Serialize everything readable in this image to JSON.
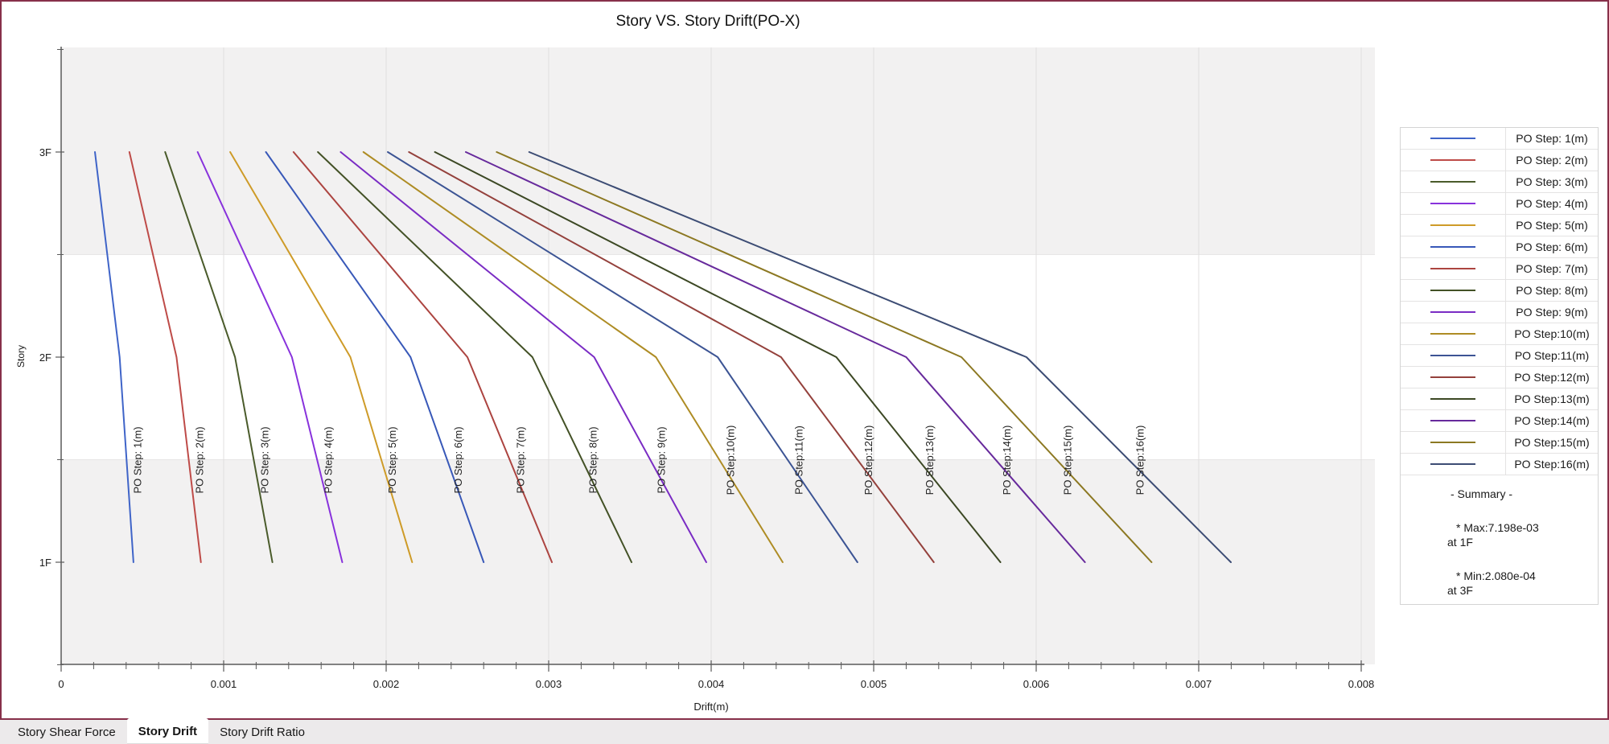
{
  "title": "Story VS. Story Drift(PO-X)",
  "chart_data": {
    "type": "line",
    "title": "Story VS. Story Drift(PO-X)",
    "xlabel": "Drift(m)",
    "ylabel": "Story",
    "xlim": [
      0,
      0.008
    ],
    "x_major_ticks": [
      0,
      0.001,
      0.002,
      0.003,
      0.004,
      0.005,
      0.006,
      0.007,
      0.008
    ],
    "x_minor_step": 0.0002,
    "y_categories": [
      "1F",
      "2F",
      "3F"
    ],
    "grid": "vertical-major, alternating horizontal bands",
    "legend_position": "right",
    "series": [
      {
        "name": "PO Step: 1(m)",
        "color": "#3F64C8",
        "values": [
          0.000445,
          0.00036,
          0.000208
        ]
      },
      {
        "name": "PO Step: 2(m)",
        "color": "#BE4B48",
        "values": [
          0.00086,
          0.00071,
          0.00042
        ]
      },
      {
        "name": "PO Step: 3(m)",
        "color": "#4A5B2B",
        "values": [
          0.0013,
          0.00107,
          0.00064
        ]
      },
      {
        "name": "PO Step: 4(m)",
        "color": "#8832DC",
        "values": [
          0.00173,
          0.00142,
          0.00084
        ]
      },
      {
        "name": "PO Step: 5(m)",
        "color": "#CE9B28",
        "values": [
          0.00216,
          0.00178,
          0.00104
        ]
      },
      {
        "name": "PO Step: 6(m)",
        "color": "#3858B8",
        "values": [
          0.0026,
          0.00215,
          0.00126
        ]
      },
      {
        "name": "PO Step: 7(m)",
        "color": "#AC4440",
        "values": [
          0.00302,
          0.0025,
          0.00143
        ]
      },
      {
        "name": "PO Step: 8(m)",
        "color": "#435126",
        "values": [
          0.00351,
          0.0029,
          0.00158
        ]
      },
      {
        "name": "PO Step: 9(m)",
        "color": "#7A2CC4",
        "values": [
          0.00397,
          0.00328,
          0.00172
        ]
      },
      {
        "name": "PO Step:10(m)",
        "color": "#AE8C24",
        "values": [
          0.00444,
          0.00366,
          0.00186
        ]
      },
      {
        "name": "PO Step:11(m)",
        "color": "#3C5494",
        "values": [
          0.0049,
          0.00404,
          0.00201
        ]
      },
      {
        "name": "PO Step:12(m)",
        "color": "#94413C",
        "values": [
          0.00537,
          0.00443,
          0.00214
        ]
      },
      {
        "name": "PO Step:13(m)",
        "color": "#3C4824",
        "values": [
          0.00578,
          0.00477,
          0.0023
        ]
      },
      {
        "name": "PO Step:14(m)",
        "color": "#672A9C",
        "values": [
          0.0063,
          0.0052,
          0.00249
        ]
      },
      {
        "name": "PO Step:15(m)",
        "color": "#8C7822",
        "values": [
          0.00671,
          0.00554,
          0.00268
        ]
      },
      {
        "name": "PO Step:16(m)",
        "color": "#3C4C74",
        "values": [
          0.007198,
          0.00594,
          0.00288
        ]
      }
    ],
    "summary": {
      "heading": "- Summary -",
      "max_line": "* Max:7.198e-03",
      "max_at": "at 1F",
      "min_line": "* Min:2.080e-04",
      "min_at": "at 3F"
    }
  },
  "tabs": [
    {
      "label": "Story Shear Force",
      "active": false
    },
    {
      "label": "Story Drift",
      "active": true
    },
    {
      "label": "Story Drift Ratio",
      "active": false
    }
  ],
  "ui_colors": {
    "panel_border": "#87304A",
    "plot_band": "#F2F1F1",
    "gridline": "#E0DFDF",
    "axis": "#5A5A5A",
    "tabbar_bg": "#ECEAEB"
  }
}
